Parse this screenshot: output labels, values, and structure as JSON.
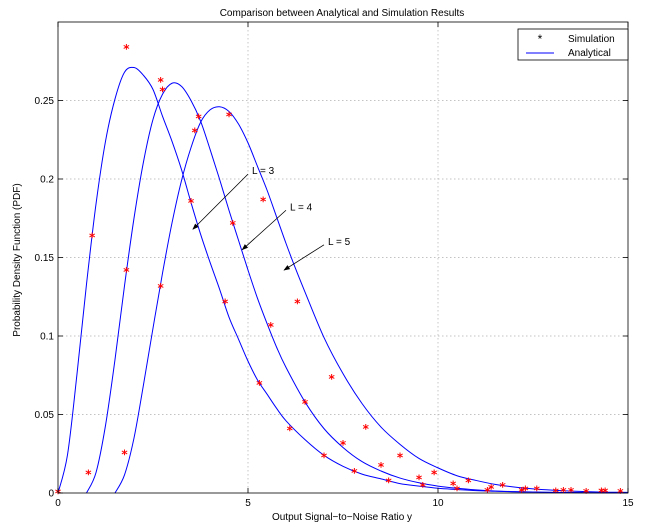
{
  "chart_data": {
    "type": "line",
    "title": "Comparison between Analytical and Simulation Results",
    "xlabel": "Output Signal−to−Noise Ratio y",
    "ylabel": "Probability Density Function (PDF)",
    "xlim": [
      0,
      15
    ],
    "ylim": [
      0,
      0.3
    ],
    "xticks": [
      0,
      5,
      10,
      15
    ],
    "yticks": [
      0,
      0.05,
      0.1,
      0.15,
      0.2,
      0.25
    ],
    "ytick_labels": [
      "0",
      "0.05",
      "0.1",
      "0.15",
      "0.2",
      "0.25"
    ],
    "grid": true,
    "legend_position": "top-right",
    "colors": {
      "analytical": "#0000ff",
      "simulation": "#ff0000"
    },
    "series": [
      {
        "name": "Analytical",
        "style": "line",
        "curves": [
          {
            "L": 3,
            "x": [
              0,
              0.25,
              0.5,
              0.75,
              1,
              1.25,
              1.5,
              1.75,
              2,
              2.25,
              2.5,
              2.75,
              3,
              3.25,
              3.5,
              3.75,
              4,
              4.25,
              4.5,
              4.75,
              5,
              5.25,
              5.5,
              5.75,
              6,
              6.5,
              7,
              7.5,
              8,
              8.5,
              9,
              9.5,
              10,
              10.5,
              11,
              11.5,
              12,
              12.5,
              13,
              13.5,
              14,
              14.5,
              15
            ],
            "y": [
              0,
              0.0243,
              0.0758,
              0.133,
              0.184,
              0.224,
              0.251,
              0.268,
              0.271,
              0.266,
              0.257,
              0.24,
              0.224,
              0.206,
              0.185,
              0.165,
              0.147,
              0.13,
              0.112,
              0.098,
              0.084,
              0.072,
              0.063,
              0.054,
              0.046,
              0.034,
              0.024,
              0.017,
              0.012,
              0.009,
              0.006,
              0.0044,
              0.003,
              0.0022,
              0.0015,
              0.0011,
              0.0008,
              0.0006,
              0.0004,
              0.0003,
              0.0002,
              0.0001,
              0.0001
            ]
          },
          {
            "L": 4,
            "x": [
              0.75,
              1,
              1.25,
              1.5,
              1.75,
              2,
              2.25,
              2.5,
              2.75,
              3,
              3.25,
              3.5,
              3.75,
              4,
              4.25,
              4.5,
              4.75,
              5,
              5.25,
              5.5,
              5.75,
              6,
              6.5,
              7,
              7.5,
              8,
              8.5,
              9,
              9.5,
              10,
              10.5,
              11,
              11.5,
              12,
              12.5,
              13,
              13.5,
              14,
              14.5,
              15
            ],
            "y": [
              0,
              0.013,
              0.043,
              0.085,
              0.132,
              0.175,
              0.211,
              0.238,
              0.254,
              0.261,
              0.259,
              0.25,
              0.237,
              0.219,
              0.2,
              0.18,
              0.161,
              0.142,
              0.124,
              0.108,
              0.093,
              0.08,
              0.058,
              0.041,
              0.029,
              0.02,
              0.014,
              0.0095,
              0.0065,
              0.0044,
              0.003,
              0.002,
              0.0013,
              0.0009,
              0.0006,
              0.0004,
              0.0003,
              0.0002,
              0.0001,
              0.0001
            ]
          },
          {
            "L": 5,
            "x": [
              1.5,
              1.75,
              2,
              2.25,
              2.5,
              2.75,
              3,
              3.25,
              3.5,
              3.75,
              4,
              4.25,
              4.5,
              4.75,
              5,
              5.25,
              5.5,
              5.75,
              6,
              6.25,
              6.5,
              7,
              7.5,
              8,
              8.5,
              9,
              9.5,
              10,
              10.5,
              11,
              11.5,
              12,
              12.5,
              13,
              13.5,
              14,
              14.5,
              15
            ],
            "y": [
              0,
              0.0115,
              0.035,
              0.069,
              0.105,
              0.14,
              0.172,
              0.199,
              0.22,
              0.236,
              0.244,
              0.246,
              0.243,
              0.235,
              0.223,
              0.208,
              0.193,
              0.176,
              0.159,
              0.143,
              0.128,
              0.099,
              0.076,
              0.057,
              0.042,
              0.031,
              0.022,
              0.016,
              0.011,
              0.008,
              0.0055,
              0.0038,
              0.0026,
              0.0018,
              0.0012,
              0.0008,
              0.0005,
              0.0004
            ]
          }
        ]
      },
      {
        "name": "Simulation",
        "style": "marker",
        "points": [
          [
            0,
            0
          ],
          [
            0.9,
            0.163
          ],
          [
            1.8,
            0.283
          ],
          [
            2.7,
            0.262
          ],
          [
            3.6,
            0.23
          ],
          [
            4.5,
            0.24
          ],
          [
            5.4,
            0.186
          ],
          [
            6.3,
            0.121
          ],
          [
            7.2,
            0.073
          ],
          [
            8.1,
            0.041
          ],
          [
            9,
            0.023
          ],
          [
            9.9,
            0.012
          ],
          [
            10.8,
            0.007
          ],
          [
            11.7,
            0.004
          ],
          [
            12.6,
            0.002
          ],
          [
            13.5,
            0.001
          ],
          [
            14.4,
            0.0005
          ],
          [
            0.8,
            0.012
          ],
          [
            1.8,
            0.141
          ],
          [
            2.75,
            0.256
          ],
          [
            3.7,
            0.239
          ],
          [
            4.6,
            0.171
          ],
          [
            5.6,
            0.106
          ],
          [
            6.5,
            0.057
          ],
          [
            7.5,
            0.031
          ],
          [
            8.5,
            0.017
          ],
          [
            9.5,
            0.009
          ],
          [
            10.4,
            0.005
          ],
          [
            11.4,
            0.003
          ],
          [
            12.3,
            0.002
          ],
          [
            13.3,
            0.001
          ],
          [
            14.3,
            0.0005
          ],
          [
            1.75,
            0.025
          ],
          [
            2.7,
            0.131
          ],
          [
            3.5,
            0.185
          ],
          [
            4.4,
            0.121
          ],
          [
            5.3,
            0.069
          ],
          [
            6.1,
            0.04
          ],
          [
            7,
            0.023
          ],
          [
            7.8,
            0.013
          ],
          [
            8.7,
            0.007
          ],
          [
            9.6,
            0.004
          ],
          [
            10.5,
            0.002
          ],
          [
            11.3,
            0.001
          ],
          [
            12.2,
            0.001
          ],
          [
            13.1,
            0.0005
          ],
          [
            13.9,
            0.0003
          ],
          [
            14.8,
            0.0002
          ]
        ]
      }
    ],
    "annotations": [
      {
        "text": "L = 3",
        "text_at": [
          11.6,
          0.205
        ],
        "arrow_to": [
          3.55,
          0.168
        ]
      },
      {
        "text": "L = 4",
        "text_at": [
          12.6,
          0.182
        ],
        "arrow_to": [
          4.85,
          0.155
        ]
      },
      {
        "text": "L = 5",
        "text_at": [
          13.6,
          0.16
        ],
        "arrow_to": [
          5.95,
          0.142
        ]
      }
    ]
  }
}
